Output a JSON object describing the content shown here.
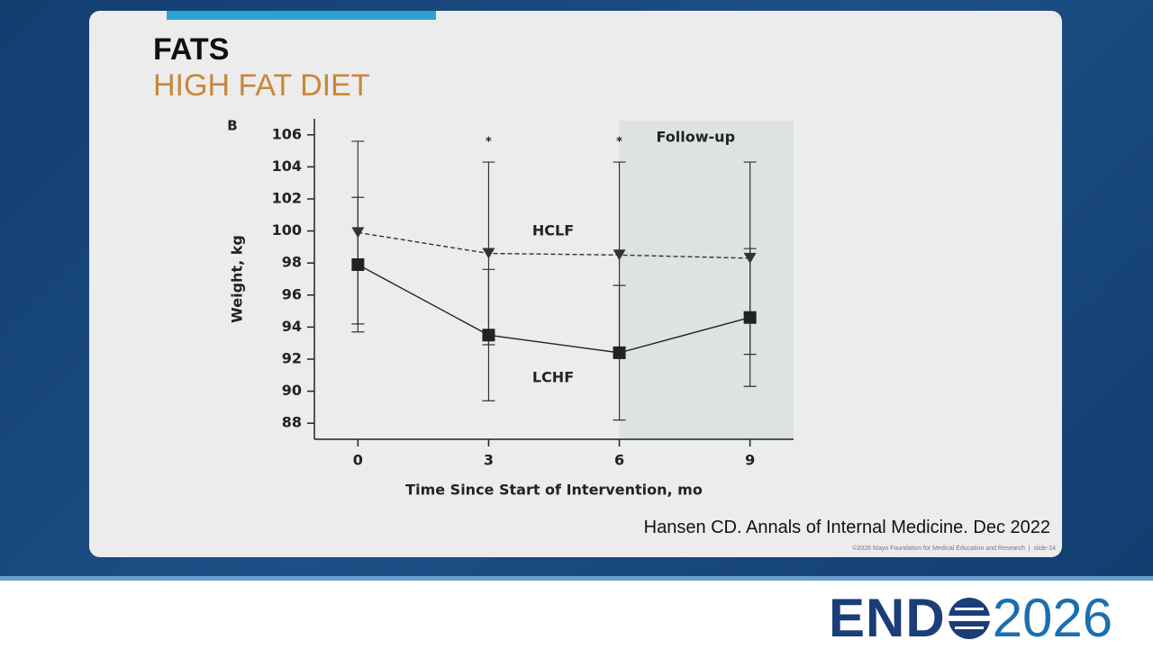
{
  "slide": {
    "title": "FATS",
    "subtitle": "HIGH FAT DIET",
    "citation": "Hansen CD. Annals of Internal Medicine. Dec 2022",
    "footer": "©2026 Mayo Foundation for Medical Education and Research  |  slide-14",
    "logo_left": "END",
    "logo_right": "2026"
  },
  "chart_data": {
    "type": "line",
    "panel_label": "B",
    "x_label": "Time Since Start of Intervention, mo",
    "y_label": "Weight, kg",
    "x": [
      0,
      3,
      6,
      9
    ],
    "xlim": [
      -1,
      10
    ],
    "xticks": [
      0,
      3,
      6,
      9
    ],
    "ylim": [
      87,
      107
    ],
    "yticks": [
      88,
      90,
      92,
      94,
      96,
      98,
      100,
      102,
      104,
      106
    ],
    "series": [
      {
        "name": "HCLF",
        "color": "#333333",
        "marker": "triangle-down",
        "dashed": true,
        "values": [
          99.9,
          98.6,
          98.5,
          98.3
        ],
        "errors": [
          5.7,
          5.7,
          5.8,
          6.0
        ]
      },
      {
        "name": "LCHF",
        "color": "#222222",
        "marker": "square",
        "dashed": false,
        "values": [
          97.9,
          93.5,
          92.4,
          94.6
        ],
        "errors": [
          4.2,
          4.1,
          4.2,
          4.3
        ]
      }
    ],
    "annotations": [
      {
        "text": "*",
        "x": 3
      },
      {
        "text": "*",
        "x": 6
      }
    ],
    "shaded_region": {
      "label": "Follow-up",
      "x": [
        6,
        10
      ],
      "color": "#dde2e2"
    }
  }
}
